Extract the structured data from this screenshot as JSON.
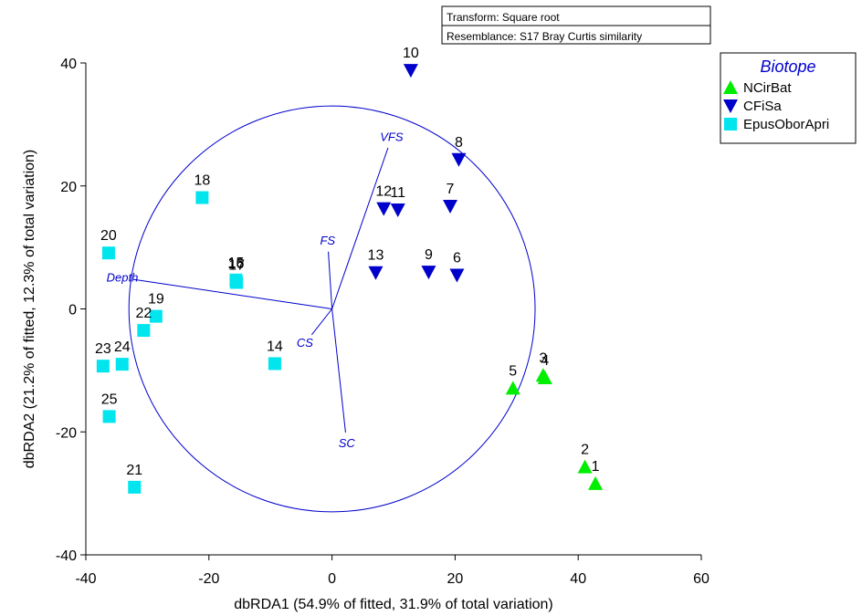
{
  "info_box": {
    "line1": "Transform: Square root",
    "line2": "Resemblance: S17 Bray Curtis similarity"
  },
  "legend": {
    "title": "Biotope",
    "title_color": "#0000cc",
    "items": [
      {
        "name": "NCirBat",
        "shape": "triangle-up",
        "color": "#00ee00"
      },
      {
        "name": "CFiSa",
        "shape": "triangle-down",
        "color": "#0000cc"
      },
      {
        "name": "EpusOborApri",
        "shape": "square",
        "color": "#00e5ee"
      }
    ]
  },
  "chart_data": {
    "type": "scatter",
    "xlabel": "dbRDA1 (54.9% of fitted, 31.9% of total variation)",
    "ylabel": "dbRDA2 (21.2% of fitted, 12.3% of total variation)",
    "xlim": [
      -40,
      60
    ],
    "ylim": [
      -40,
      40
    ],
    "xticks": [
      -40,
      -20,
      0,
      20,
      40,
      60
    ],
    "yticks": [
      -40,
      -20,
      0,
      20,
      40
    ],
    "xtick_labels": [
      "-40",
      "-20",
      "0",
      "20",
      "40",
      "60"
    ],
    "ytick_labels": [
      "-40",
      "-20",
      "0",
      "20",
      "40"
    ],
    "grid": false,
    "legend_position": "top-right",
    "series": [
      {
        "name": "NCirBat",
        "marker": "triangle-up",
        "color": "#00ee00",
        "points": [
          {
            "label": "1",
            "x": 42.8,
            "y": -28.4
          },
          {
            "label": "2",
            "x": 41.1,
            "y": -25.7
          },
          {
            "label": "3",
            "x": 34.3,
            "y": -10.8
          },
          {
            "label": "4",
            "x": 34.6,
            "y": -11.2
          },
          {
            "label": "5",
            "x": 29.4,
            "y": -12.9
          }
        ]
      },
      {
        "name": "CFiSa",
        "marker": "triangle-down",
        "color": "#0000cc",
        "points": [
          {
            "label": "6",
            "x": 20.3,
            "y": 5.5
          },
          {
            "label": "7",
            "x": 19.2,
            "y": 16.7
          },
          {
            "label": "8",
            "x": 20.6,
            "y": 24.3
          },
          {
            "label": "9",
            "x": 15.7,
            "y": 6.0
          },
          {
            "label": "10",
            "x": 12.8,
            "y": 38.8
          },
          {
            "label": "11",
            "x": 10.7,
            "y": 16.1
          },
          {
            "label": "12",
            "x": 8.4,
            "y": 16.3
          },
          {
            "label": "13",
            "x": 7.1,
            "y": 5.9
          }
        ]
      },
      {
        "name": "EpusOborApri",
        "marker": "square",
        "color": "#00e5ee",
        "points": [
          {
            "label": "14",
            "x": -9.3,
            "y": -8.9
          },
          {
            "label": "15",
            "x": -15.6,
            "y": 4.7
          },
          {
            "label": "16",
            "x": -15.6,
            "y": 4.5
          },
          {
            "label": "17",
            "x": -15.5,
            "y": 4.3
          },
          {
            "label": "18",
            "x": -21.1,
            "y": 18.1
          },
          {
            "label": "19",
            "x": -28.6,
            "y": -1.2
          },
          {
            "label": "20",
            "x": -36.3,
            "y": 9.1
          },
          {
            "label": "21",
            "x": -32.1,
            "y": -29.0
          },
          {
            "label": "22",
            "x": -30.6,
            "y": -3.5
          },
          {
            "label": "23",
            "x": -37.2,
            "y": -9.3
          },
          {
            "label": "24",
            "x": -34.1,
            "y": -9.0
          },
          {
            "label": "25",
            "x": -36.2,
            "y": -17.5
          }
        ]
      }
    ],
    "vectors": [
      {
        "label": "VFS",
        "x": 9.1,
        "y": 26.2
      },
      {
        "label": "FS",
        "x": -0.6,
        "y": 9.3
      },
      {
        "label": "Depth",
        "x": -32.3,
        "y": 4.8
      },
      {
        "label": "CS",
        "x": -3.3,
        "y": -4.2
      },
      {
        "label": "SC",
        "x": 2.2,
        "y": -20.1
      }
    ],
    "circle": {
      "center": [
        0,
        0
      ],
      "radius": 33
    },
    "vector_color": "#0000cc"
  }
}
